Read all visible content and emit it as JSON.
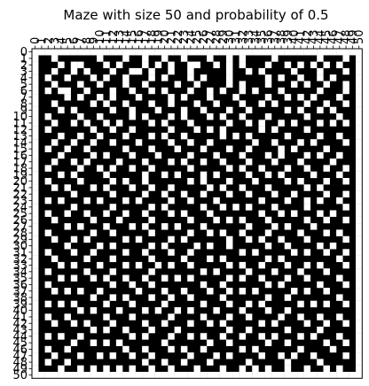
{
  "chart_data": {
    "type": "heatmap",
    "title": "Maze with size 50 and probability of 0.5",
    "xlabel": "",
    "ylabel": "",
    "size": 51,
    "xlim": [
      0,
      50
    ],
    "ylim": [
      0,
      50
    ],
    "x_ticks": [
      0,
      1,
      2,
      3,
      4,
      5,
      6,
      7,
      8,
      9,
      10,
      11,
      12,
      13,
      14,
      15,
      16,
      17,
      18,
      19,
      20,
      21,
      22,
      23,
      24,
      25,
      26,
      27,
      28,
      29,
      30,
      31,
      32,
      33,
      34,
      35,
      36,
      37,
      38,
      39,
      40,
      41,
      42,
      43,
      44,
      45,
      46,
      47,
      48,
      49,
      50
    ],
    "y_ticks": [
      0,
      1,
      2,
      3,
      4,
      5,
      6,
      7,
      8,
      9,
      10,
      11,
      12,
      13,
      14,
      15,
      16,
      17,
      18,
      19,
      20,
      21,
      22,
      23,
      24,
      25,
      26,
      27,
      28,
      29,
      30,
      31,
      32,
      33,
      34,
      35,
      36,
      37,
      38,
      39,
      40,
      41,
      42,
      43,
      44,
      45,
      46,
      47,
      48,
      49,
      50
    ],
    "x_axis_position": "top",
    "colormap": {
      "0": "#000000",
      "1": "#ffffff"
    },
    "grid": [
      "111111111111111111111111111111111111111111111111111",
      "100100000010001001001001000100101000010000001000101",
      "100010110001010001010100110010101000100101010101001",
      "100100101000100110100100100000100101000010001000101",
      "101001000101001000101000101000100000101001001010001",
      "100100010010001001000010010000101000100010100100101",
      "101011001000100100101000100101001010001000001000101",
      "100001010010100010000101000100010000100101010001001",
      "100100000101001000100100010010001001010000100100101",
      "100010100000100100010001001000100100000101001010001",
      "101000010010000101000101000101001000100000100001001",
      "100100101001010000101000100000100101001010001010101",
      "101000000100100100000100010101000001010000100000001",
      "100010010010001000101001000001010100000100001001001",
      "100100100100100010000100100100000010010001010000101",
      "101001001000001000100010001000100100001010000100001",
      "100010000101000100010000100010001000101000101001001",
      "100100101000010001000101001001000100010001000010001",
      "101000010010100100100000100000101001000100100100101",
      "100010100001000001001010001010000100101000010001001",
      "101000010000101001000000101000100010000101000100101",
      "100101000101000100100100000101001000100000101000001",
      "100000100000100001001001001000100100010010000100101",
      "101010001010001010000100100010000001000100101001001",
      "100000100000100000101000001001010100010000100000101",
      "101001001001001001000101000100000001001010001010001",
      "100100000100010000100000100010101000100000100100101",
      "100001010001000101001010001000000100010100010000001",
      "101000000100100000100000100101001000100001000101001",
      "100100101000001010000101000000100101001000100000101",
      "100001000010100000101000010100100000100100001010001",
      "101000100100001001000100100000001010000010100100101",
      "100100001000100000100001000101000000101000000001001",
      "100010100010001010010100100000101001000100101000101",
      "101000001000100000100000001010000100010001000100001",
      "100010100101001001001010100000101001000100100001001",
      "101000000000100100100000001001000000101000001000101",
      "100101010010000010001001000100101010000010100100001",
      "100000000100101000100100100001000000100100000001001",
      "101010100001000100001000001000100101000001010100101",
      "100000010100010001010010100010001000100100000000001",
      "101001000001000100000100001000100100001001001001001",
      "100100101000100001001000100101000001010000100100101",
      "100000000101001000100010000000100100000100001000001",
      "101010010000000101000100101001001001010001010001001",
      "100000100101010000001000000100100000100100000100101",
      "101001000000001001000101001000001010000001000010001",
      "100100010010100100100000100010100001001010010000101",
      "101001000000000001001001000100000100000100001000001",
      "100010010101010100100100010001001010100100100101001",
      "111111111111111111111111111111111111111111111111111"
    ]
  }
}
